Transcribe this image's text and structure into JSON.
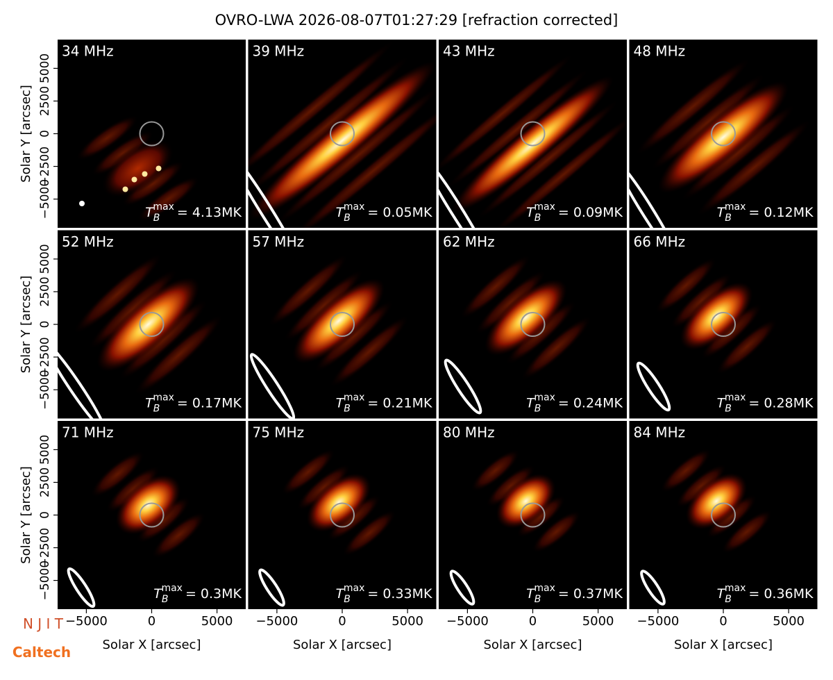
{
  "title": "OVRO-LWA 2026-08-07T01:27:29 [refraction corrected]",
  "xlabel": "Solar X [arcsec]",
  "ylabel": "Solar Y [arcsec]",
  "xlim": [
    -7200,
    7200
  ],
  "ylim": [
    -7200,
    7200
  ],
  "xticks": [
    {
      "value": -5000,
      "label": "−5000"
    },
    0,
    5000
  ],
  "yticks": [
    {
      "value": -5000,
      "label": "−5000"
    },
    {
      "value": -2500,
      "label": "−2500"
    },
    0,
    2500,
    5000
  ],
  "annotation_symbol": "T",
  "annotation_sub": "B",
  "annotation_sup": "max",
  "logos": [
    "N J I T",
    "Caltech"
  ],
  "chart_data": [
    {
      "type": "image",
      "title": "34 MHz",
      "annotation": "= 4.13MK"
    },
    {
      "type": "image",
      "title": "39 MHz",
      "annotation": "= 0.05MK"
    },
    {
      "type": "image",
      "title": "43 MHz",
      "annotation": "= 0.09MK"
    },
    {
      "type": "image",
      "title": "48 MHz",
      "annotation": "= 0.12MK"
    },
    {
      "type": "image",
      "title": "52 MHz",
      "annotation": "= 0.17MK"
    },
    {
      "type": "image",
      "title": "57 MHz",
      "annotation": "= 0.21MK"
    },
    {
      "type": "image",
      "title": "62 MHz",
      "annotation": "= 0.24MK"
    },
    {
      "type": "image",
      "title": "66 MHz",
      "annotation": "= 0.28MK"
    },
    {
      "type": "image",
      "title": "71 MHz",
      "annotation": "= 0.3MK"
    },
    {
      "type": "image",
      "title": "75 MHz",
      "annotation": "= 0.33MK"
    },
    {
      "type": "image",
      "title": "80 MHz",
      "annotation": "= 0.37MK"
    },
    {
      "type": "image",
      "title": "84 MHz",
      "annotation": "= 0.36MK"
    }
  ]
}
